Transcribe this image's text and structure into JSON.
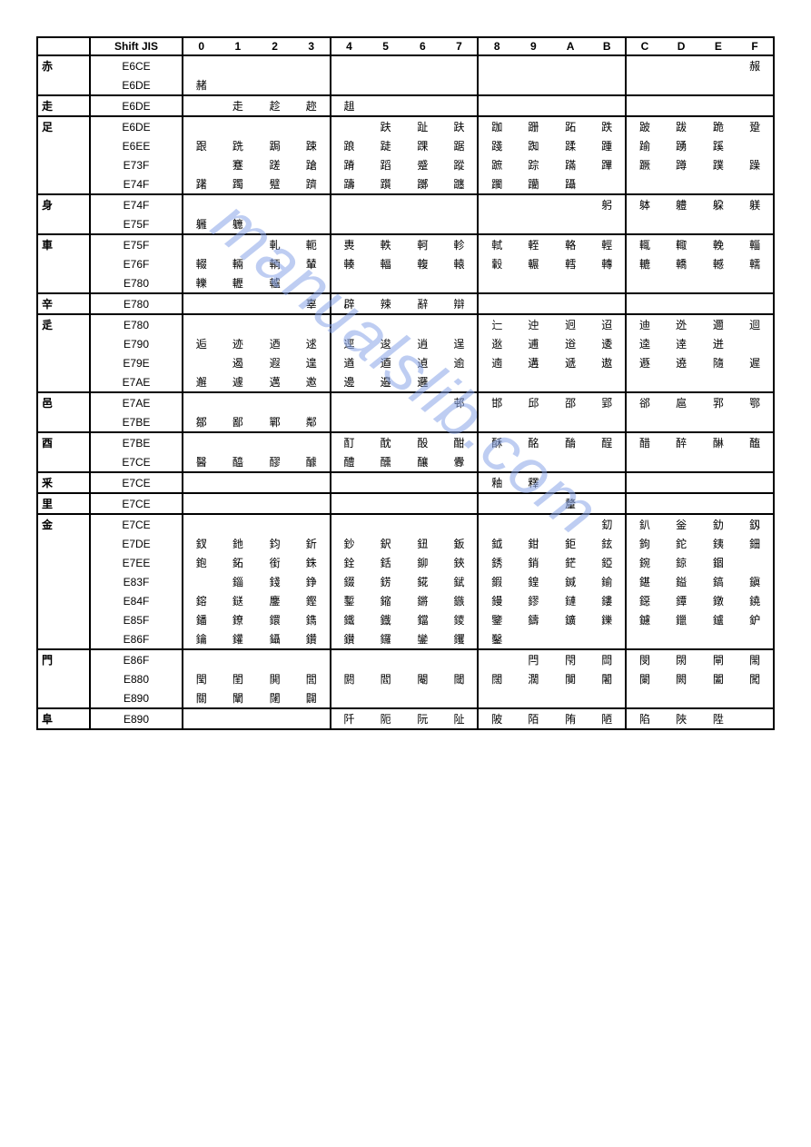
{
  "watermark": "manualslib.com",
  "headers": {
    "radical": "",
    "sjis": "Shift JIS",
    "cols": [
      "0",
      "1",
      "2",
      "3",
      "4",
      "5",
      "6",
      "7",
      "8",
      "9",
      "A",
      "B",
      "C",
      "D",
      "E",
      "F"
    ]
  },
  "groups": [
    {
      "radical": "赤",
      "rows": [
        {
          "sjis": "E6CE",
          "cells": [
            "",
            "",
            "",
            "",
            "",
            "",
            "",
            "",
            "",
            "",
            "",
            "",
            "",
            "",
            "",
            "赧"
          ]
        },
        {
          "sjis": "E6DE",
          "cells": [
            "赭",
            "",
            "",
            "",
            "",
            "",
            "",
            "",
            "",
            "",
            "",
            "",
            "",
            "",
            "",
            ""
          ]
        }
      ]
    },
    {
      "radical": "走",
      "rows": [
        {
          "sjis": "E6DE",
          "cells": [
            "",
            "走",
            "趁",
            "趂",
            "趄",
            "",
            "",
            "",
            "",
            "",
            "",
            "",
            "",
            "",
            "",
            ""
          ]
        }
      ]
    },
    {
      "radical": "足",
      "rows": [
        {
          "sjis": "E6DE",
          "cells": [
            "",
            "",
            "",
            "",
            "",
            "趺",
            "趾",
            "趺",
            "跏",
            "跚",
            "跖",
            "跌",
            "跛",
            "跋",
            "跪",
            "跫"
          ]
        },
        {
          "sjis": "E6EE",
          "cells": [
            "跟",
            "跣",
            "跼",
            "踈",
            "踉",
            "跿",
            "踝",
            "踞",
            "踐",
            "踟",
            "蹂",
            "踵",
            "踰",
            "踴",
            "蹊",
            ""
          ]
        },
        {
          "sjis": "E73F",
          "cells": [
            "",
            "蹇",
            "蹉",
            "蹌",
            "蹐",
            "蹈",
            "蹙",
            "蹤",
            "蹠",
            "踪",
            "蹣",
            "蹕",
            "蹶",
            "蹲",
            "蹼",
            "躁"
          ]
        },
        {
          "sjis": "E74F",
          "cells": [
            "躇",
            "躅",
            "躄",
            "躋",
            "躊",
            "躓",
            "躑",
            "躔",
            "躙",
            "躪",
            "躡",
            "",
            "",
            "",
            "",
            ""
          ]
        }
      ]
    },
    {
      "radical": "身",
      "rows": [
        {
          "sjis": "E74F",
          "cells": [
            "",
            "",
            "",
            "",
            "",
            "",
            "",
            "",
            "",
            "",
            "",
            "躬",
            "躰",
            "軆",
            "躱",
            "躾"
          ]
        },
        {
          "sjis": "E75F",
          "cells": [
            "軅",
            "軈",
            "",
            "",
            "",
            "",
            "",
            "",
            "",
            "",
            "",
            "",
            "",
            "",
            "",
            ""
          ]
        }
      ]
    },
    {
      "radical": "車",
      "rows": [
        {
          "sjis": "E75F",
          "cells": [
            "",
            "",
            "軋",
            "軛",
            "軣",
            "軼",
            "軻",
            "軫",
            "軾",
            "輊",
            "輅",
            "輕",
            "輒",
            "輙",
            "輓",
            "輜"
          ]
        },
        {
          "sjis": "E76F",
          "cells": [
            "輟",
            "輛",
            "輌",
            "輦",
            "輳",
            "輻",
            "輹",
            "轅",
            "轂",
            "輾",
            "轌",
            "轉",
            "轆",
            "轎",
            "轗",
            "轜"
          ]
        },
        {
          "sjis": "E780",
          "cells": [
            "轢",
            "轣",
            "轤",
            "",
            "",
            "",
            "",
            "",
            "",
            "",
            "",
            "",
            "",
            "",
            "",
            ""
          ]
        }
      ]
    },
    {
      "radical": "辛",
      "rows": [
        {
          "sjis": "E780",
          "cells": [
            "",
            "",
            "",
            "辜",
            "辟",
            "辣",
            "辭",
            "辯",
            "",
            "",
            "",
            "",
            "",
            "",
            "",
            ""
          ]
        }
      ]
    },
    {
      "radical": "辵",
      "rows": [
        {
          "sjis": "E780",
          "cells": [
            "",
            "",
            "",
            "",
            "",
            "",
            "",
            "",
            "辷",
            "迚",
            "迥",
            "迢",
            "迪",
            "迯",
            "邇",
            "迴"
          ]
        },
        {
          "sjis": "E790",
          "cells": [
            "逅",
            "迹",
            "迺",
            "逑",
            "逕",
            "逡",
            "逍",
            "逞",
            "逖",
            "逋",
            "逧",
            "逶",
            "逵",
            "逹",
            "迸",
            ""
          ]
        },
        {
          "sjis": "E79E",
          "cells": [
            "",
            "遏",
            "遐",
            "遑",
            "遒",
            "逎",
            "遉",
            "逾",
            "遖",
            "遘",
            "遞",
            "遨",
            "遯",
            "遶",
            "隨",
            "遲"
          ]
        },
        {
          "sjis": "E7AE",
          "cells": [
            "邂",
            "遽",
            "邁",
            "邀",
            "邊",
            "邉",
            "邏",
            "",
            "",
            "",
            "",
            "",
            "",
            "",
            "",
            ""
          ]
        }
      ]
    },
    {
      "radical": "邑",
      "rows": [
        {
          "sjis": "E7AE",
          "cells": [
            "",
            "",
            "",
            "",
            "",
            "",
            "",
            "邨",
            "邯",
            "邱",
            "邵",
            "郢",
            "郤",
            "扈",
            "郛",
            "鄂"
          ]
        },
        {
          "sjis": "E7BE",
          "cells": [
            "鄒",
            "鄙",
            "鄲",
            "鄰",
            "",
            "",
            "",
            "",
            "",
            "",
            "",
            "",
            "",
            "",
            "",
            ""
          ]
        }
      ]
    },
    {
      "radical": "酉",
      "rows": [
        {
          "sjis": "E7BE",
          "cells": [
            "",
            "",
            "",
            "",
            "酊",
            "酖",
            "酘",
            "酣",
            "酥",
            "酩",
            "酳",
            "酲",
            "醋",
            "醉",
            "醂",
            "醢"
          ]
        },
        {
          "sjis": "E7CE",
          "cells": [
            "醫",
            "醯",
            "醪",
            "醵",
            "醴",
            "醺",
            "釀",
            "釁",
            "",
            "",
            "",
            "",
            "",
            "",
            "",
            ""
          ]
        }
      ]
    },
    {
      "radical": "釆",
      "rows": [
        {
          "sjis": "E7CE",
          "cells": [
            "",
            "",
            "",
            "",
            "",
            "",
            "",
            "",
            "釉",
            "釋",
            "",
            "",
            "",
            "",
            "",
            ""
          ]
        }
      ]
    },
    {
      "radical": "里",
      "rows": [
        {
          "sjis": "E7CE",
          "cells": [
            "",
            "",
            "",
            "",
            "",
            "",
            "",
            "",
            "",
            "",
            "釐",
            "",
            "",
            "",
            "",
            ""
          ]
        }
      ]
    },
    {
      "radical": "金",
      "rows": [
        {
          "sjis": "E7CE",
          "cells": [
            "",
            "",
            "",
            "",
            "",
            "",
            "",
            "",
            "",
            "",
            "",
            "釖",
            "釟",
            "釡",
            "釛",
            "釼"
          ]
        },
        {
          "sjis": "E7DE",
          "cells": [
            "釵",
            "釶",
            "鈞",
            "釿",
            "鈔",
            "鈬",
            "鈕",
            "鈑",
            "鉞",
            "鉗",
            "鉅",
            "鉉",
            "鉤",
            "鉈",
            "銕",
            "鈿"
          ]
        },
        {
          "sjis": "E7EE",
          "cells": [
            "鉋",
            "鉐",
            "銜",
            "銖",
            "銓",
            "銛",
            "鉚",
            "鋏",
            "銹",
            "銷",
            "鋩",
            "錏",
            "鋺",
            "鍄",
            "錮",
            ""
          ]
        },
        {
          "sjis": "E83F",
          "cells": [
            "",
            "錙",
            "錢",
            "錚",
            "錣",
            "錺",
            "錵",
            "錻",
            "鍜",
            "鍠",
            "鍼",
            "鍮",
            "鍖",
            "鎰",
            "鎬",
            "鎭"
          ]
        },
        {
          "sjis": "E84F",
          "cells": [
            "鎔",
            "鎹",
            "鏖",
            "鏗",
            "鏨",
            "鏥",
            "鏘",
            "鏃",
            "鏝",
            "鏐",
            "鏈",
            "鏤",
            "鐚",
            "鐔",
            "鐓",
            "鐃"
          ]
        },
        {
          "sjis": "E85F",
          "cells": [
            "鐇",
            "鐐",
            "鐶",
            "鐫",
            "鐵",
            "鐡",
            "鐺",
            "鑁",
            "鑒",
            "鑄",
            "鑛",
            "鑠",
            "鑢",
            "鑞",
            "鑪",
            "鈩"
          ]
        },
        {
          "sjis": "E86F",
          "cells": [
            "鑰",
            "鑵",
            "鑷",
            "鑽",
            "鑚",
            "鑼",
            "鑾",
            "钁",
            "鑿",
            "",
            "",
            "",
            "",
            "",
            "",
            ""
          ]
        }
      ]
    },
    {
      "radical": "門",
      "rows": [
        {
          "sjis": "E86F",
          "cells": [
            "",
            "",
            "",
            "",
            "",
            "",
            "",
            "",
            "",
            "閂",
            "閇",
            "閊",
            "閔",
            "閖",
            "閘",
            "閙"
          ]
        },
        {
          "sjis": "E880",
          "cells": [
            "閠",
            "閨",
            "閧",
            "閭",
            "閼",
            "閻",
            "閹",
            "閾",
            "闊",
            "濶",
            "闃",
            "闍",
            "闌",
            "闕",
            "闔",
            "闖"
          ]
        },
        {
          "sjis": "E890",
          "cells": [
            "關",
            "闡",
            "闥",
            "闢",
            "",
            "",
            "",
            "",
            "",
            "",
            "",
            "",
            "",
            "",
            "",
            ""
          ]
        }
      ]
    },
    {
      "radical": "阜",
      "rows": [
        {
          "sjis": "E890",
          "cells": [
            "",
            "",
            "",
            "",
            "阡",
            "阨",
            "阮",
            "阯",
            "陂",
            "陌",
            "陏",
            "陋",
            "陷",
            "陜",
            "陞",
            ""
          ]
        }
      ]
    }
  ]
}
